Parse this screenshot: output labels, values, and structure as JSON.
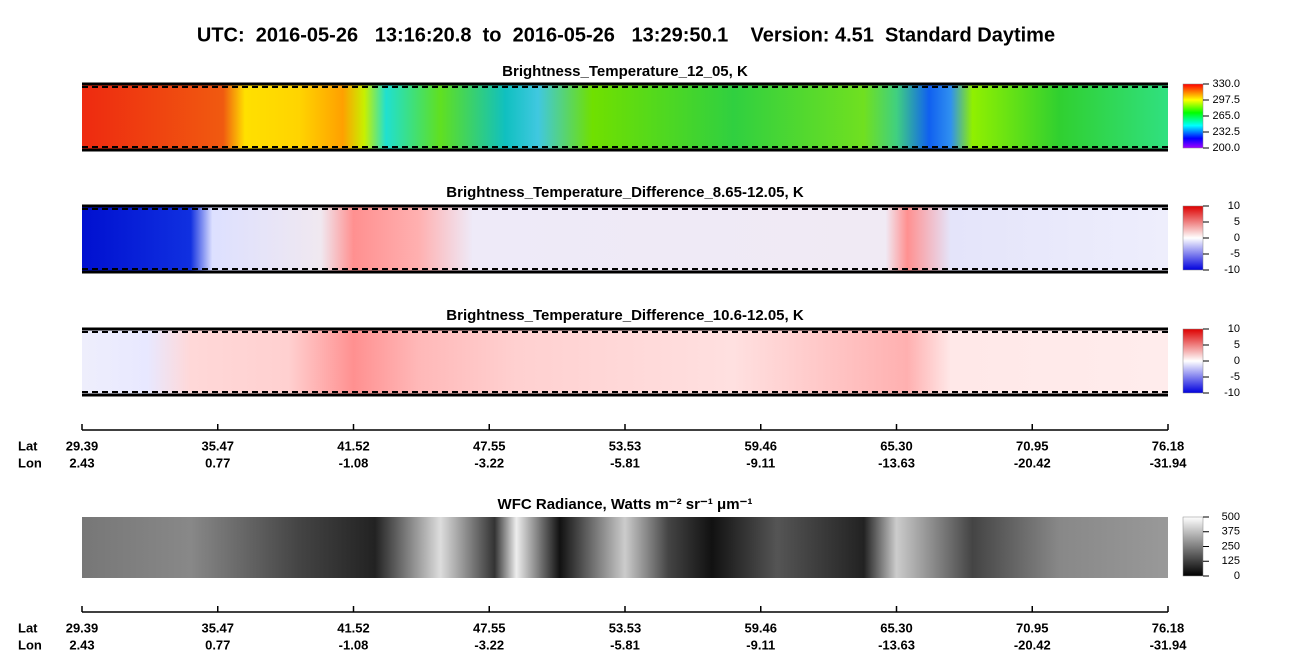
{
  "title": "UTC:  2016-05-26   13:16:20.8  to  2016-05-26   13:29:50.1    Version: 4.51  Standard Daytime",
  "chart_data": [
    {
      "type": "heatmap",
      "title": "Brightness_Temperature_12_05, K",
      "colormap": "rainbow",
      "clim": [
        200,
        330
      ],
      "cticks": [
        {
          "value": 330,
          "label": "330.0"
        },
        297.5,
        {
          "value": 265,
          "label": "265.0"
        },
        232.5,
        {
          "value": 200,
          "label": "200.0"
        }
      ]
    },
    {
      "type": "heatmap",
      "title": "Brightness_Temperature_Difference_8.65-12.05, K",
      "colormap": "bwr",
      "clim": [
        -10,
        10
      ],
      "cticks": [
        10,
        5,
        0,
        -5,
        -10
      ]
    },
    {
      "type": "heatmap",
      "title": "Brightness_Temperature_Difference_10.6-12.05, K",
      "colormap": "bwr",
      "clim": [
        -10,
        10
      ],
      "cticks": [
        10,
        5,
        0,
        -5,
        -10
      ]
    },
    {
      "type": "heatmap",
      "title": "WFC Radiance, Watts m⁻² sr⁻¹ μm⁻¹",
      "colormap": "gray",
      "clim": [
        0,
        500
      ],
      "cticks": [
        500,
        375,
        250,
        125,
        0
      ]
    }
  ],
  "axis": {
    "lat_label": "Lat",
    "lon_label": "Lon",
    "lat": [
      29.39,
      35.47,
      41.52,
      47.55,
      53.53,
      59.46,
      {
        "value": 65.3,
        "label": "65.30"
      },
      70.95,
      76.18
    ],
    "lon": [
      2.43,
      0.77,
      -1.08,
      -3.22,
      -5.81,
      -9.11,
      -13.63,
      -20.42,
      -31.94
    ]
  }
}
